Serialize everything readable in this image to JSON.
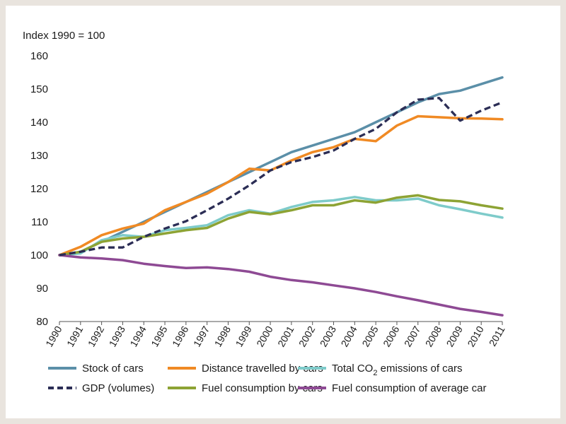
{
  "chart_data": {
    "type": "line",
    "title": "",
    "unit_label": "Index 1990 = 100",
    "xlabel": "",
    "ylabel": "",
    "ylim": [
      80,
      160
    ],
    "y_ticks": [
      80,
      90,
      100,
      110,
      120,
      130,
      140,
      150,
      160
    ],
    "categories": [
      "1990",
      "1991",
      "1992",
      "1993",
      "1994",
      "1995",
      "1996",
      "1997",
      "1998",
      "1999",
      "2000",
      "2001",
      "2002",
      "2003",
      "2004",
      "2005",
      "2006",
      "2007",
      "2008",
      "2009",
      "2010",
      "2011"
    ],
    "grid": false,
    "legend_position": "bottom",
    "series": [
      {
        "name": "Stock of cars",
        "color": "#5b8fa8",
        "dash": false,
        "values": [
          100,
          101,
          104,
          107,
          110,
          113,
          116,
          119,
          122,
          125,
          128,
          131,
          133,
          135,
          137,
          140,
          143,
          146,
          148.5,
          149.5,
          151.5,
          153.5
        ]
      },
      {
        "name": "Distance travelled by cars",
        "color": "#f08a24",
        "dash": false,
        "values": [
          100,
          102.5,
          106,
          108,
          109.5,
          113.5,
          116,
          118.5,
          122,
          126,
          125.5,
          128.5,
          131,
          132.5,
          135,
          134.3,
          139,
          141.8,
          141.5,
          141.2,
          141.1,
          140.9
        ]
      },
      {
        "name": "Total CO2 emissions of cars",
        "name_parts": [
          "Total CO",
          "2",
          " emissions of cars"
        ],
        "color": "#7ecbca",
        "dash": false,
        "values": [
          100,
          100.5,
          104.5,
          106,
          105.5,
          107.5,
          108.2,
          109,
          112,
          113.5,
          112.5,
          114.5,
          116,
          116.5,
          117.5,
          116.5,
          116.5,
          117,
          115,
          113.8,
          112.5,
          111.3
        ]
      },
      {
        "name": "GDP (volumes)",
        "color": "#2b2d55",
        "dash": true,
        "values": [
          100,
          101,
          102.3,
          102.3,
          105.5,
          108,
          110.2,
          113.5,
          117,
          121,
          125.5,
          128,
          129.5,
          131.5,
          135,
          138,
          143,
          146.8,
          147.3,
          140.5,
          143.5,
          146
        ]
      },
      {
        "name": "Fuel consumption by cars",
        "color": "#8da334",
        "dash": false,
        "values": [
          100,
          101,
          104,
          105,
          105.5,
          106.5,
          107.5,
          108.2,
          111,
          113,
          112.3,
          113.5,
          115,
          115,
          116.5,
          115.8,
          117.3,
          118,
          116.6,
          116.2,
          115,
          114
        ]
      },
      {
        "name": "Fuel consumption of average car",
        "color": "#8e4a94",
        "dash": false,
        "values": [
          100,
          99.3,
          99,
          98.5,
          97.4,
          96.7,
          96.1,
          96.3,
          95.8,
          95,
          93.5,
          92.5,
          91.8,
          90.9,
          90,
          88.9,
          87.6,
          86.4,
          85.1,
          83.8,
          82.9,
          81.9
        ]
      }
    ]
  }
}
